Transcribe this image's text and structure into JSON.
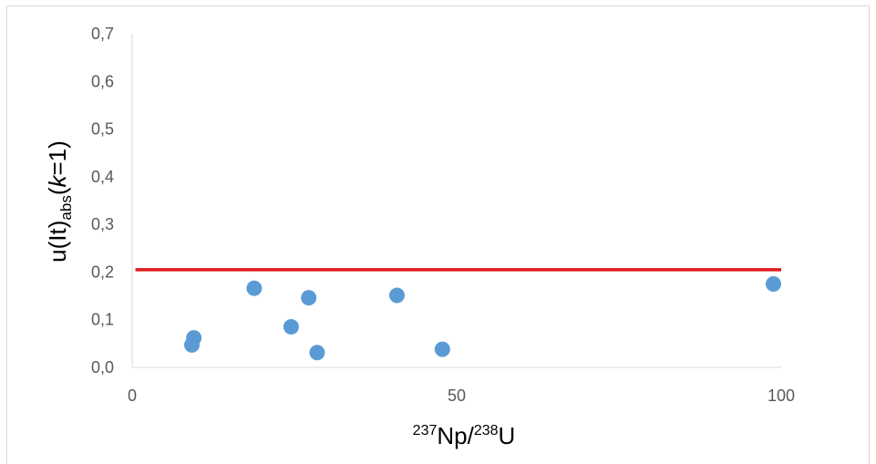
{
  "chart_data": {
    "type": "scatter",
    "title": "",
    "xlabel": {
      "sup1": "237",
      "base1": "Np/",
      "sup2": "238",
      "base2": "U"
    },
    "ylabel": {
      "base": "u(It)",
      "sub": "abs",
      "pre": "(",
      "italic": "k",
      "post": "=1)"
    },
    "xlim": [
      0,
      100
    ],
    "ylim": [
      0,
      0.7
    ],
    "x_ticks": [
      "0",
      "50",
      "100"
    ],
    "y_ticks": [
      "0,0",
      "0,1",
      "0,2",
      "0,3",
      "0,4",
      "0,5",
      "0,6",
      "0,7"
    ],
    "grid": false,
    "reference_line": {
      "y": 0.205,
      "x_from": 0.5,
      "x_to": 100,
      "color": "#e31a1c"
    },
    "marker_color": "#5b9bd5",
    "points": [
      {
        "x": 9.2,
        "y": 0.047
      },
      {
        "x": 9.5,
        "y": 0.062
      },
      {
        "x": 18.8,
        "y": 0.166
      },
      {
        "x": 24.5,
        "y": 0.085
      },
      {
        "x": 27.2,
        "y": 0.146
      },
      {
        "x": 28.5,
        "y": 0.031
      },
      {
        "x": 40.8,
        "y": 0.151
      },
      {
        "x": 47.8,
        "y": 0.038
      },
      {
        "x": 98.8,
        "y": 0.175
      }
    ]
  }
}
